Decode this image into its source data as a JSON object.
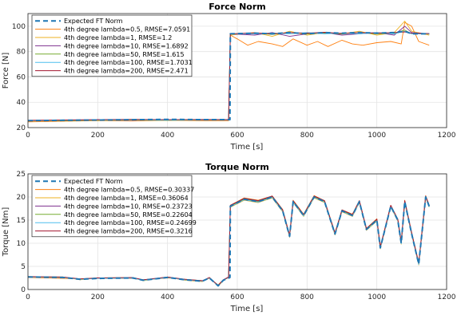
{
  "chart_data": [
    {
      "type": "line",
      "title": "Force Norm",
      "xlabel": "Time [s]",
      "ylabel": "Force [N]",
      "xlim": [
        0,
        1200
      ],
      "ylim": [
        20,
        110
      ],
      "xticks": [
        "0",
        "200",
        "400",
        "600",
        "800",
        "1000",
        "1200"
      ],
      "yticks": [
        "20",
        "40",
        "60",
        "80",
        "100"
      ],
      "grid": true,
      "legend": {
        "placement": "top-left",
        "entries": [
          "Expected FT Norm",
          "4th degree lambda=0.5, RMSE=7.0591",
          "4th degree lambda=1, RMSE=1.2",
          "4th degree lambda=10, RMSE=1.6892",
          "4th degree lambda=50, RMSE=1.615",
          "4th degree lambda=100, RMSE=1.7031",
          "4th degree lambda=200, RMSE=2.471"
        ]
      },
      "series": [
        {
          "name": "Expected FT Norm",
          "color": "#1f77b4",
          "style": "dashed",
          "x": [
            0,
            100,
            200,
            300,
            400,
            500,
            579,
            580,
            650,
            700,
            750,
            800,
            850,
            900,
            950,
            1000,
            1050,
            1080,
            1100,
            1150
          ],
          "y": [
            25.5,
            25.8,
            26,
            26.2,
            26.5,
            26.3,
            26.3,
            94,
            94.5,
            94,
            95,
            94,
            95,
            94.5,
            95,
            94.5,
            95,
            96,
            94,
            94
          ]
        },
        {
          "name": "4th degree lambda=0.5, RMSE=7.0591",
          "color": "#ff7f0e",
          "style": "solid",
          "x": [
            0,
            100,
            200,
            300,
            400,
            500,
            575,
            580,
            600,
            630,
            660,
            700,
            730,
            760,
            800,
            830,
            860,
            900,
            930,
            960,
            1000,
            1040,
            1070,
            1080,
            1100,
            1120,
            1150
          ],
          "y": [
            24.5,
            25,
            25.5,
            25.2,
            25.8,
            25.5,
            25.5,
            93,
            90,
            85,
            88,
            86,
            84,
            90,
            85,
            88,
            84,
            89,
            86,
            85,
            87,
            88,
            86,
            103,
            100,
            88,
            85
          ]
        },
        {
          "name": "4th degree lambda=1, RMSE=1.2",
          "color": "#edb120",
          "style": "solid",
          "x": [
            0,
            100,
            200,
            300,
            400,
            500,
            575,
            580,
            650,
            700,
            750,
            800,
            850,
            900,
            950,
            1000,
            1050,
            1080,
            1100,
            1150
          ],
          "y": [
            25,
            26,
            25.5,
            26.5,
            26,
            26,
            26,
            93,
            95,
            92,
            96,
            93,
            95,
            94,
            96,
            93,
            95,
            104,
            96,
            93
          ]
        },
        {
          "name": "4th degree lambda=10, RMSE=1.6892",
          "color": "#7e2f8e",
          "style": "solid",
          "x": [
            0,
            100,
            200,
            300,
            400,
            500,
            575,
            580,
            650,
            700,
            750,
            800,
            850,
            900,
            950,
            1000,
            1050,
            1080,
            1100,
            1150
          ],
          "y": [
            25.2,
            25.6,
            26,
            25.8,
            26.2,
            26,
            26,
            94,
            93,
            95,
            92,
            94,
            95,
            93,
            94,
            95,
            93,
            100,
            95,
            94
          ]
        },
        {
          "name": "4th degree lambda=50, RMSE=1.615",
          "color": "#77ac30",
          "style": "solid",
          "x": [
            0,
            100,
            200,
            300,
            400,
            500,
            575,
            580,
            650,
            700,
            750,
            800,
            850,
            900,
            950,
            1000,
            1050,
            1080,
            1100,
            1150
          ],
          "y": [
            25.5,
            25.3,
            25.8,
            26,
            25.7,
            26.1,
            26,
            94,
            94.5,
            93.5,
            95,
            94,
            94.5,
            93.8,
            95,
            94,
            94.5,
            97,
            94,
            94
          ]
        },
        {
          "name": "4th degree lambda=100, RMSE=1.7031",
          "color": "#4dbeee",
          "style": "solid",
          "x": [
            0,
            100,
            200,
            300,
            400,
            500,
            575,
            580,
            650,
            700,
            750,
            800,
            850,
            900,
            950,
            1000,
            1050,
            1080,
            1100,
            1150
          ],
          "y": [
            25.4,
            25.7,
            25.9,
            26.1,
            25.9,
            26.2,
            26,
            94,
            94,
            94.5,
            94,
            95,
            94,
            94.5,
            94,
            95,
            94,
            96,
            94,
            94
          ]
        },
        {
          "name": "4th degree lambda=200, RMSE=2.471",
          "color": "#a2142f",
          "style": "solid",
          "x": [
            0,
            100,
            200,
            300,
            400,
            500,
            575,
            580,
            650,
            700,
            750,
            800,
            850,
            900,
            950,
            1000,
            1050,
            1080,
            1100,
            1150
          ],
          "y": [
            25.8,
            26,
            26.3,
            26.5,
            26.2,
            26.4,
            26.3,
            94,
            94.8,
            94,
            95,
            94.5,
            95.2,
            94.3,
            95,
            94.6,
            95,
            95.5,
            94.5,
            94.2
          ]
        }
      ]
    },
    {
      "type": "line",
      "title": "Torque Norm",
      "xlabel": "Time [s]",
      "ylabel": "Torque [Nm]",
      "xlim": [
        0,
        1200
      ],
      "ylim": [
        0,
        25
      ],
      "xticks": [
        "0",
        "200",
        "400",
        "600",
        "800",
        "1000",
        "1200"
      ],
      "yticks": [
        "0",
        "5",
        "10",
        "15",
        "20",
        "25"
      ],
      "grid": true,
      "legend": {
        "placement": "top-left",
        "entries": [
          "Expected FT Norm",
          "4th degree lambda=0.5, RMSE=0.30337",
          "4th degree lambda=1, RMSE=0.36064",
          "4th degree lambda=10, RMSE=0.23723",
          "4th degree lambda=50, RMSE=0.22604",
          "4th degree lambda=100, RMSE=0.24699",
          "4th degree lambda=200, RMSE=0.3216"
        ]
      },
      "series": [
        {
          "name": "Expected FT Norm",
          "color": "#1f77b4",
          "style": "dashed",
          "x": [
            0,
            100,
            150,
            200,
            300,
            330,
            400,
            450,
            500,
            520,
            545,
            560,
            579,
            580,
            620,
            660,
            700,
            730,
            750,
            760,
            790,
            820,
            850,
            880,
            900,
            930,
            950,
            970,
            1000,
            1010,
            1040,
            1060,
            1070,
            1080,
            1100,
            1120,
            1140,
            1150
          ],
          "y": [
            2.7,
            2.6,
            2.2,
            2.4,
            2.5,
            2.0,
            2.6,
            2.1,
            1.8,
            2.5,
            0.8,
            2.0,
            2.6,
            18,
            19.5,
            19,
            20,
            17,
            11.5,
            19,
            16,
            20,
            19,
            12,
            17,
            16,
            19,
            13,
            15,
            9,
            18,
            15,
            10,
            19,
            12,
            5.5,
            20,
            18
          ]
        },
        {
          "name": "4th degree lambda=0.5, RMSE=0.30337",
          "color": "#ff7f0e",
          "style": "solid",
          "x": [
            0,
            100,
            150,
            200,
            300,
            330,
            400,
            450,
            500,
            520,
            545,
            560,
            575,
            580,
            620,
            660,
            700,
            730,
            750,
            760,
            790,
            820,
            850,
            880,
            900,
            930,
            950,
            970,
            1000,
            1010,
            1040,
            1060,
            1070,
            1080,
            1100,
            1120,
            1140,
            1150
          ],
          "y": [
            2.6,
            2.4,
            2.3,
            2.5,
            2.4,
            2.1,
            2.5,
            2.2,
            1.9,
            2.4,
            1.0,
            2.1,
            2.5,
            18.2,
            19.8,
            19.3,
            20.2,
            17.3,
            11.8,
            19.3,
            16.3,
            20.3,
            19.2,
            12.3,
            17.2,
            16.3,
            19.2,
            13.2,
            15.3,
            9.3,
            18.2,
            15.2,
            10.3,
            19.3,
            12.3,
            5.8,
            20.3,
            18.2
          ]
        },
        {
          "name": "4th degree lambda=1, RMSE=0.36064",
          "color": "#edb120",
          "style": "solid",
          "x": [
            0,
            100,
            150,
            200,
            300,
            330,
            400,
            450,
            500,
            520,
            545,
            560,
            575,
            580,
            620,
            660,
            700,
            730,
            750,
            760,
            790,
            820,
            850,
            880,
            900,
            930,
            950,
            970,
            1000,
            1010,
            1040,
            1060,
            1070,
            1080,
            1100,
            1120,
            1140,
            1150
          ],
          "y": [
            2.8,
            2.7,
            2.1,
            2.5,
            2.6,
            1.9,
            2.7,
            2.0,
            1.7,
            2.6,
            0.7,
            1.9,
            2.7,
            17.8,
            19.3,
            18.8,
            19.8,
            16.8,
            11.3,
            18.8,
            15.8,
            19.8,
            18.8,
            11.8,
            16.8,
            15.8,
            18.8,
            12.8,
            14.8,
            8.8,
            17.8,
            14.8,
            9.8,
            18.8,
            11.8,
            5.3,
            19.8,
            17.8
          ]
        },
        {
          "name": "4th degree lambda=10, RMSE=0.23723",
          "color": "#7e2f8e",
          "style": "solid",
          "x": [
            0,
            100,
            150,
            200,
            300,
            330,
            400,
            450,
            500,
            520,
            545,
            560,
            575,
            580,
            620,
            660,
            700,
            730,
            750,
            760,
            790,
            820,
            850,
            880,
            900,
            930,
            950,
            970,
            1000,
            1010,
            1040,
            1060,
            1070,
            1080,
            1100,
            1120,
            1140,
            1150
          ],
          "y": [
            2.7,
            2.6,
            2.2,
            2.4,
            2.5,
            2.0,
            2.6,
            2.1,
            1.8,
            2.5,
            0.8,
            2.0,
            2.6,
            18.1,
            19.6,
            19.1,
            20.1,
            17.1,
            11.6,
            19.1,
            16.1,
            20.1,
            19.1,
            12.1,
            17.1,
            16.1,
            19.1,
            13.1,
            15.1,
            9.1,
            18.1,
            15.1,
            10.1,
            19.1,
            12.1,
            5.6,
            20.1,
            18.1
          ]
        },
        {
          "name": "4th degree lambda=50, RMSE=0.22604",
          "color": "#77ac30",
          "style": "solid",
          "x": [
            0,
            100,
            150,
            200,
            300,
            330,
            400,
            450,
            500,
            520,
            545,
            560,
            575,
            580,
            620,
            660,
            700,
            730,
            750,
            760,
            790,
            820,
            850,
            880,
            900,
            930,
            950,
            970,
            1000,
            1010,
            1040,
            1060,
            1070,
            1080,
            1100,
            1120,
            1140,
            1150
          ],
          "y": [
            2.7,
            2.6,
            2.2,
            2.4,
            2.5,
            2.0,
            2.6,
            2.1,
            1.8,
            2.5,
            0.8,
            2.0,
            2.6,
            18.0,
            19.5,
            19.0,
            20.0,
            17.0,
            11.5,
            19.0,
            16.0,
            20.0,
            19.0,
            12.0,
            17.0,
            16.0,
            19.0,
            13.0,
            15.0,
            9.0,
            18.0,
            15.0,
            10.0,
            19.0,
            12.0,
            5.5,
            20.0,
            18.0
          ]
        },
        {
          "name": "4th degree lambda=100, RMSE=0.24699",
          "color": "#4dbeee",
          "style": "solid",
          "x": [
            0,
            100,
            150,
            200,
            300,
            330,
            400,
            450,
            500,
            520,
            545,
            560,
            575,
            580,
            620,
            660,
            700,
            730,
            750,
            760,
            790,
            820,
            850,
            880,
            900,
            930,
            950,
            970,
            1000,
            1010,
            1040,
            1060,
            1070,
            1080,
            1100,
            1120,
            1140,
            1150
          ],
          "y": [
            2.7,
            2.6,
            2.2,
            2.4,
            2.5,
            2.0,
            2.6,
            2.1,
            1.8,
            2.5,
            0.8,
            2.0,
            2.6,
            17.9,
            19.4,
            18.9,
            19.9,
            16.9,
            11.4,
            18.9,
            15.9,
            19.9,
            18.9,
            11.9,
            16.9,
            15.9,
            18.9,
            12.9,
            14.9,
            8.9,
            17.9,
            14.9,
            9.9,
            18.9,
            11.9,
            5.4,
            19.9,
            17.9
          ]
        },
        {
          "name": "4th degree lambda=200, RMSE=0.3216",
          "color": "#a2142f",
          "style": "solid",
          "x": [
            0,
            100,
            150,
            200,
            300,
            330,
            400,
            450,
            500,
            520,
            545,
            560,
            575,
            580,
            620,
            660,
            700,
            730,
            750,
            760,
            790,
            820,
            850,
            880,
            900,
            930,
            950,
            970,
            1000,
            1010,
            1040,
            1060,
            1070,
            1080,
            1100,
            1120,
            1140,
            1150
          ],
          "y": [
            2.8,
            2.7,
            2.3,
            2.5,
            2.6,
            2.1,
            2.7,
            2.2,
            1.9,
            2.6,
            0.9,
            2.1,
            2.7,
            18.2,
            19.7,
            19.2,
            20.2,
            17.2,
            11.7,
            19.2,
            16.2,
            20.2,
            19.2,
            12.2,
            17.2,
            16.2,
            19.2,
            13.2,
            15.2,
            9.2,
            18.2,
            15.2,
            10.2,
            19.2,
            12.2,
            5.7,
            20.2,
            18.2
          ]
        }
      ]
    }
  ]
}
